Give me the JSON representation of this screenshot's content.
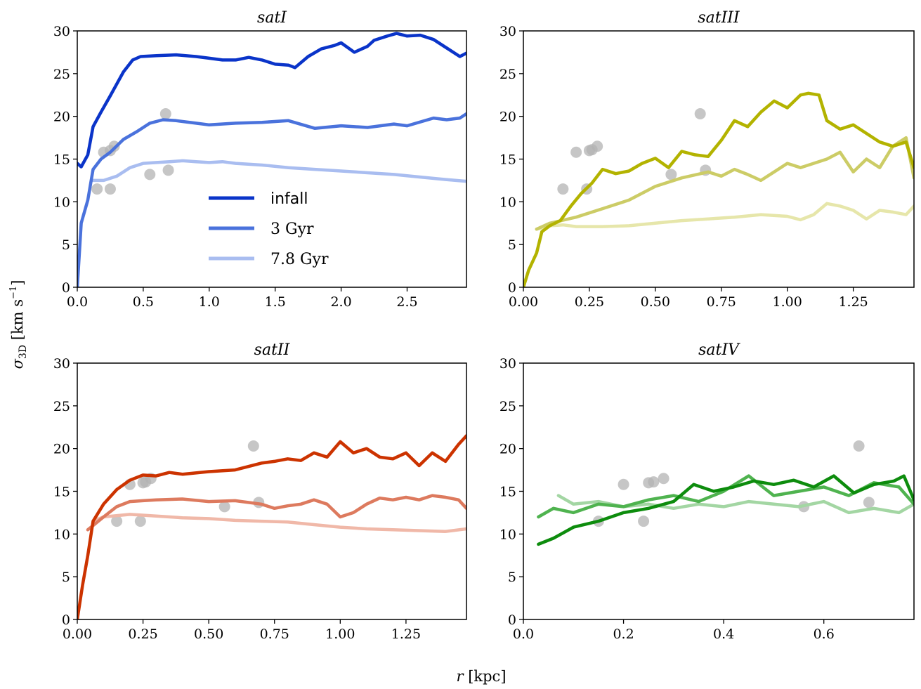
{
  "figure": {
    "ylabel_main": "σ",
    "ylabel_sub": "3D",
    "ylabel_unit": " [km s",
    "ylabel_exp": "−1",
    "ylabel_close": "]",
    "xlabel_var": "r",
    "xlabel_unit": " [kpc]"
  },
  "legend": {
    "entries": [
      {
        "label": "infall",
        "font": "sans"
      },
      {
        "label": "3 Gyr",
        "font": "serif"
      },
      {
        "label": "7.8 Gyr",
        "font": "serif"
      }
    ]
  },
  "colors": {
    "observed": "#b3b3b3",
    "satI": [
      "#0a34c9",
      "#4a72dc",
      "#a9bdf0"
    ],
    "satIII": [
      "#b3b300",
      "#cccc66",
      "#e6e6aa"
    ],
    "satII": [
      "#cc3300",
      "#dd7a5e",
      "#f0b8a8"
    ],
    "satIV": [
      "#0d8c0d",
      "#4fb34f",
      "#a3d6a3"
    ]
  },
  "chart_data": [
    {
      "type": "line",
      "title": "satI",
      "xlim": [
        0,
        2.95
      ],
      "ylim": [
        0,
        30
      ],
      "xticks": [
        0,
        0.5,
        1,
        1.5,
        2,
        2.5
      ],
      "xtick_labels": [
        "0.0",
        "0.5",
        "1.0",
        "1.5",
        "2.0",
        "2.5"
      ],
      "yticks": [
        0,
        5,
        10,
        15,
        20,
        25,
        30
      ],
      "ytick_labels": [
        "0",
        "5",
        "10",
        "15",
        "20",
        "25",
        "30"
      ],
      "legend": "center",
      "series": [
        {
          "name": "infall",
          "x": [
            0,
            0.03,
            0.08,
            0.12,
            0.18,
            0.25,
            0.3,
            0.35,
            0.42,
            0.48,
            0.6,
            0.75,
            0.9,
            1.0,
            1.1,
            1.2,
            1.3,
            1.4,
            1.5,
            1.6,
            1.65,
            1.75,
            1.85,
            1.95,
            2.0,
            2.1,
            2.2,
            2.25,
            2.35,
            2.42,
            2.5,
            2.6,
            2.7,
            2.8,
            2.9,
            2.95
          ],
          "y": [
            14.5,
            14.1,
            15.5,
            18.8,
            20.5,
            22.4,
            23.8,
            25.2,
            26.6,
            27.0,
            27.1,
            27.2,
            27.0,
            26.8,
            26.6,
            26.6,
            26.9,
            26.6,
            26.1,
            26.0,
            25.7,
            27.0,
            27.9,
            28.3,
            28.6,
            27.5,
            28.2,
            28.9,
            29.4,
            29.7,
            29.4,
            29.5,
            29.0,
            28.0,
            27.0,
            27.4
          ]
        },
        {
          "name": "3 Gyr",
          "x": [
            0,
            0.03,
            0.08,
            0.12,
            0.18,
            0.25,
            0.35,
            0.45,
            0.55,
            0.65,
            0.75,
            0.9,
            1.0,
            1.2,
            1.4,
            1.6,
            1.8,
            2.0,
            2.2,
            2.4,
            2.5,
            2.7,
            2.8,
            2.9,
            2.95
          ],
          "y": [
            0,
            7.5,
            10.2,
            13.8,
            15.0,
            15.8,
            17.3,
            18.2,
            19.2,
            19.6,
            19.5,
            19.2,
            19.0,
            19.2,
            19.3,
            19.5,
            18.6,
            18.9,
            18.7,
            19.1,
            18.9,
            19.8,
            19.6,
            19.8,
            20.3
          ]
        },
        {
          "name": "7.8 Gyr",
          "x": [
            0.12,
            0.2,
            0.3,
            0.4,
            0.5,
            0.6,
            0.7,
            0.8,
            0.9,
            1.0,
            1.1,
            1.2,
            1.4,
            1.6,
            1.8,
            2.0,
            2.2,
            2.4,
            2.6,
            2.8,
            2.95
          ],
          "y": [
            12.5,
            12.5,
            13.0,
            14.0,
            14.5,
            14.6,
            14.7,
            14.8,
            14.7,
            14.6,
            14.7,
            14.5,
            14.3,
            14.0,
            13.8,
            13.6,
            13.4,
            13.2,
            12.9,
            12.6,
            12.4
          ]
        }
      ],
      "observed_points": {
        "x": [
          0.15,
          0.2,
          0.25,
          0.25,
          0.28,
          0.55,
          0.67,
          0.69
        ],
        "y": [
          11.5,
          15.8,
          11.5,
          16.0,
          16.5,
          13.2,
          20.3,
          13.7
        ]
      }
    },
    {
      "type": "line",
      "title": "satIII",
      "xlim": [
        0,
        1.48
      ],
      "ylim": [
        0,
        30
      ],
      "xticks": [
        0,
        0.25,
        0.5,
        0.75,
        1,
        1.25
      ],
      "xtick_labels": [
        "0.00",
        "0.25",
        "0.50",
        "0.75",
        "1.00",
        "1.25"
      ],
      "yticks": [
        0,
        5,
        10,
        15,
        20,
        25,
        30
      ],
      "ytick_labels": [
        "0",
        "5",
        "10",
        "15",
        "20",
        "25",
        "30"
      ],
      "series": [
        {
          "name": "infall",
          "x": [
            0,
            0.02,
            0.05,
            0.07,
            0.1,
            0.14,
            0.18,
            0.22,
            0.26,
            0.3,
            0.35,
            0.4,
            0.45,
            0.5,
            0.55,
            0.6,
            0.65,
            0.7,
            0.75,
            0.8,
            0.85,
            0.9,
            0.95,
            1.0,
            1.05,
            1.08,
            1.12,
            1.15,
            1.2,
            1.25,
            1.3,
            1.35,
            1.4,
            1.45,
            1.48
          ],
          "y": [
            0,
            2.0,
            4.0,
            6.5,
            7.2,
            7.8,
            9.5,
            11.0,
            12.2,
            13.8,
            13.3,
            13.6,
            14.5,
            15.1,
            14.0,
            15.9,
            15.5,
            15.3,
            17.2,
            19.5,
            18.8,
            20.5,
            21.8,
            21.0,
            22.5,
            22.7,
            22.5,
            19.5,
            18.5,
            19.0,
            18.0,
            17.0,
            16.5,
            17.0,
            14.0
          ]
        },
        {
          "name": "3 Gyr",
          "x": [
            0.05,
            0.1,
            0.2,
            0.3,
            0.4,
            0.5,
            0.6,
            0.7,
            0.75,
            0.8,
            0.85,
            0.9,
            0.95,
            1.0,
            1.05,
            1.1,
            1.15,
            1.2,
            1.25,
            1.3,
            1.35,
            1.4,
            1.45,
            1.48
          ],
          "y": [
            6.8,
            7.5,
            8.2,
            9.2,
            10.2,
            11.8,
            12.8,
            13.5,
            13.0,
            13.8,
            13.2,
            12.5,
            13.5,
            14.5,
            14.0,
            14.5,
            15.0,
            15.8,
            13.5,
            15.0,
            14.0,
            16.5,
            17.5,
            12.8
          ]
        },
        {
          "name": "7.8 Gyr",
          "x": [
            0.05,
            0.1,
            0.15,
            0.2,
            0.3,
            0.4,
            0.5,
            0.6,
            0.7,
            0.8,
            0.9,
            1.0,
            1.05,
            1.1,
            1.15,
            1.2,
            1.25,
            1.3,
            1.35,
            1.4,
            1.45,
            1.48
          ],
          "y": [
            6.8,
            7.2,
            7.3,
            7.1,
            7.1,
            7.2,
            7.5,
            7.8,
            8.0,
            8.2,
            8.5,
            8.3,
            7.9,
            8.5,
            9.8,
            9.5,
            9.0,
            8.0,
            9.0,
            8.8,
            8.5,
            9.5
          ]
        }
      ],
      "observed_points": {
        "x": [
          0.15,
          0.2,
          0.24,
          0.25,
          0.26,
          0.28,
          0.56,
          0.67,
          0.69
        ],
        "y": [
          11.5,
          15.8,
          11.5,
          16.0,
          16.1,
          16.5,
          13.2,
          20.3,
          13.7
        ]
      }
    },
    {
      "type": "line",
      "title": "satII",
      "xlim": [
        0,
        1.48
      ],
      "ylim": [
        0,
        30
      ],
      "xticks": [
        0,
        0.25,
        0.5,
        0.75,
        1,
        1.25
      ],
      "xtick_labels": [
        "0.00",
        "0.25",
        "0.50",
        "0.75",
        "1.00",
        "1.25"
      ],
      "yticks": [
        0,
        5,
        10,
        15,
        20,
        25,
        30
      ],
      "ytick_labels": [
        "0",
        "5",
        "10",
        "15",
        "20",
        "25",
        "30"
      ],
      "series": [
        {
          "name": "infall",
          "x": [
            0,
            0.02,
            0.04,
            0.06,
            0.1,
            0.15,
            0.2,
            0.25,
            0.3,
            0.35,
            0.4,
            0.5,
            0.6,
            0.7,
            0.75,
            0.8,
            0.85,
            0.9,
            0.95,
            1.0,
            1.05,
            1.1,
            1.15,
            1.2,
            1.25,
            1.3,
            1.35,
            1.4,
            1.45,
            1.48
          ],
          "y": [
            0,
            4.0,
            7.5,
            11.5,
            13.5,
            15.2,
            16.3,
            16.9,
            16.8,
            17.2,
            17.0,
            17.3,
            17.5,
            18.3,
            18.5,
            18.8,
            18.6,
            19.5,
            19.0,
            20.8,
            19.5,
            20.0,
            19.0,
            18.8,
            19.5,
            18.0,
            19.5,
            18.5,
            20.5,
            21.5
          ]
        },
        {
          "name": "3 Gyr",
          "x": [
            0.04,
            0.06,
            0.1,
            0.15,
            0.2,
            0.25,
            0.3,
            0.4,
            0.5,
            0.6,
            0.7,
            0.75,
            0.8,
            0.85,
            0.9,
            0.95,
            1.0,
            1.05,
            1.1,
            1.15,
            1.2,
            1.25,
            1.3,
            1.35,
            1.4,
            1.45,
            1.48
          ],
          "y": [
            10.5,
            11.0,
            12.0,
            13.2,
            13.8,
            13.9,
            14.0,
            14.1,
            13.8,
            13.9,
            13.5,
            13.0,
            13.3,
            13.5,
            14.0,
            13.5,
            12.0,
            12.5,
            13.5,
            14.2,
            14.0,
            14.3,
            14.0,
            14.5,
            14.3,
            14.0,
            13.0
          ]
        },
        {
          "name": "7.8 Gyr",
          "x": [
            0.06,
            0.1,
            0.2,
            0.3,
            0.4,
            0.5,
            0.6,
            0.7,
            0.8,
            0.9,
            1.0,
            1.1,
            1.2,
            1.3,
            1.4,
            1.48
          ],
          "y": [
            11.5,
            12.0,
            12.3,
            12.1,
            11.9,
            11.8,
            11.6,
            11.5,
            11.4,
            11.1,
            10.8,
            10.6,
            10.5,
            10.4,
            10.3,
            10.6
          ]
        }
      ],
      "observed_points": {
        "x": [
          0.15,
          0.2,
          0.24,
          0.25,
          0.26,
          0.28,
          0.56,
          0.67,
          0.69
        ],
        "y": [
          11.5,
          15.8,
          11.5,
          16.0,
          16.1,
          16.5,
          13.2,
          20.3,
          13.7
        ]
      }
    },
    {
      "type": "line",
      "title": "satIV",
      "xlim": [
        0,
        0.78
      ],
      "ylim": [
        0,
        30
      ],
      "xticks": [
        0,
        0.2,
        0.4,
        0.6
      ],
      "xtick_labels": [
        "0.0",
        "0.2",
        "0.4",
        "0.6"
      ],
      "yticks": [
        0,
        5,
        10,
        15,
        20,
        25,
        30
      ],
      "ytick_labels": [
        "0",
        "5",
        "10",
        "15",
        "20",
        "25",
        "30"
      ],
      "series": [
        {
          "name": "infall",
          "x": [
            0.03,
            0.06,
            0.1,
            0.15,
            0.2,
            0.25,
            0.3,
            0.34,
            0.38,
            0.42,
            0.46,
            0.5,
            0.54,
            0.58,
            0.62,
            0.66,
            0.7,
            0.74,
            0.76,
            0.78
          ],
          "y": [
            8.8,
            9.5,
            10.8,
            11.5,
            12.5,
            13.0,
            13.8,
            15.8,
            15.0,
            15.5,
            16.2,
            15.8,
            16.3,
            15.5,
            16.8,
            14.8,
            15.8,
            16.2,
            16.8,
            14.0
          ]
        },
        {
          "name": "3 Gyr",
          "x": [
            0.03,
            0.06,
            0.1,
            0.15,
            0.2,
            0.25,
            0.3,
            0.35,
            0.4,
            0.45,
            0.5,
            0.55,
            0.6,
            0.65,
            0.7,
            0.75,
            0.78
          ],
          "y": [
            12.0,
            13.0,
            12.5,
            13.5,
            13.2,
            14.0,
            14.5,
            13.8,
            15.0,
            16.8,
            14.5,
            15.0,
            15.5,
            14.5,
            16.0,
            15.5,
            13.5
          ]
        },
        {
          "name": "7.8 Gyr",
          "x": [
            0.07,
            0.1,
            0.15,
            0.2,
            0.25,
            0.3,
            0.35,
            0.4,
            0.45,
            0.5,
            0.55,
            0.6,
            0.65,
            0.7,
            0.75,
            0.78
          ],
          "y": [
            14.5,
            13.5,
            13.8,
            13.2,
            13.5,
            13.0,
            13.5,
            13.2,
            13.8,
            13.5,
            13.2,
            13.8,
            12.5,
            13.0,
            12.5,
            13.5
          ]
        }
      ],
      "observed_points": {
        "x": [
          0.15,
          0.2,
          0.24,
          0.25,
          0.26,
          0.28,
          0.56,
          0.67,
          0.69
        ],
        "y": [
          11.5,
          15.8,
          11.5,
          16.0,
          16.1,
          16.5,
          13.2,
          20.3,
          13.7
        ]
      }
    }
  ]
}
